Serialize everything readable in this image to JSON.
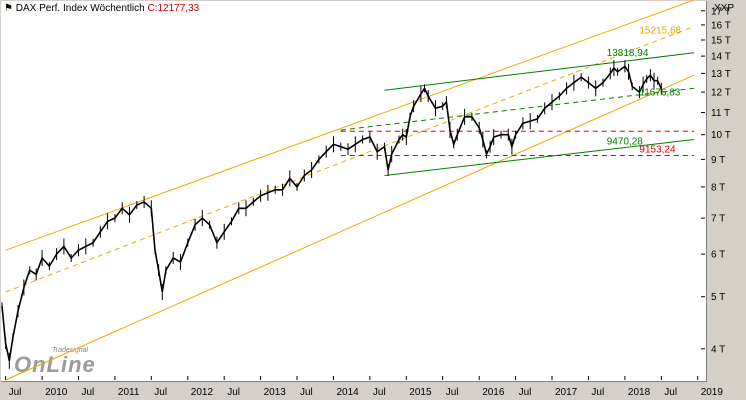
{
  "header": {
    "icon": "flag-icon",
    "instrument": "DAX Perf. Index",
    "period": "Wöchentlich",
    "close_label": "C:12177,33"
  },
  "axis_title": "XXP",
  "logo": {
    "small": "Tradesignal",
    "big": "OnLine"
  },
  "chart_data": {
    "type": "line",
    "scale": "log",
    "title": "DAX Perf. Index Wöchentlich",
    "ylim": [
      3.5,
      17.5
    ],
    "y_ticks": [
      {
        "value": 4,
        "label": "4 T"
      },
      {
        "value": 5,
        "label": "5 T"
      },
      {
        "value": 6,
        "label": "6 T"
      },
      {
        "value": 7,
        "label": "7 T"
      },
      {
        "value": 8,
        "label": "8 T"
      },
      {
        "value": 9,
        "label": "9 T"
      },
      {
        "value": 10,
        "label": "10 T"
      },
      {
        "value": 11,
        "label": "11 T"
      },
      {
        "value": 12,
        "label": "12 T"
      },
      {
        "value": 13,
        "label": "13 T"
      },
      {
        "value": 14,
        "label": "14 T"
      },
      {
        "value": 15,
        "label": "15 T"
      },
      {
        "value": 16,
        "label": "16 T"
      },
      {
        "value": 17,
        "label": "17 T"
      }
    ],
    "xlim": [
      2009.45,
      2019.1
    ],
    "x_ticks": [
      {
        "value": 2009.5,
        "label": "Jul"
      },
      {
        "value": 2010.0,
        "label": "2010"
      },
      {
        "value": 2010.5,
        "label": "Jul"
      },
      {
        "value": 2011.0,
        "label": "2011"
      },
      {
        "value": 2011.5,
        "label": "Jul"
      },
      {
        "value": 2012.0,
        "label": "2012"
      },
      {
        "value": 2012.5,
        "label": "Jul"
      },
      {
        "value": 2013.0,
        "label": "2013"
      },
      {
        "value": 2013.5,
        "label": "Jul"
      },
      {
        "value": 2014.0,
        "label": "2014"
      },
      {
        "value": 2014.5,
        "label": "Jul"
      },
      {
        "value": 2015.0,
        "label": "2015"
      },
      {
        "value": 2015.5,
        "label": "Jul"
      },
      {
        "value": 2016.0,
        "label": "2016"
      },
      {
        "value": 2016.5,
        "label": "Jul"
      },
      {
        "value": 2017.0,
        "label": "2017"
      },
      {
        "value": 2017.5,
        "label": "Jul"
      },
      {
        "value": 2018.0,
        "label": "2018"
      },
      {
        "value": 2018.5,
        "label": "Jul"
      },
      {
        "value": 2019.0,
        "label": "2019"
      }
    ],
    "series": [
      {
        "color": "#000000",
        "points": [
          [
            2009.45,
            4.8
          ],
          [
            2009.5,
            4.1
          ],
          [
            2009.55,
            3.8
          ],
          [
            2009.6,
            4.2
          ],
          [
            2009.67,
            4.7
          ],
          [
            2009.75,
            5.2
          ],
          [
            2009.83,
            5.6
          ],
          [
            2009.92,
            5.5
          ],
          [
            2010.0,
            5.9
          ],
          [
            2010.1,
            5.7
          ],
          [
            2010.2,
            6.0
          ],
          [
            2010.3,
            6.2
          ],
          [
            2010.4,
            5.9
          ],
          [
            2010.5,
            6.1
          ],
          [
            2010.6,
            6.2
          ],
          [
            2010.7,
            6.3
          ],
          [
            2010.8,
            6.6
          ],
          [
            2010.9,
            6.9
          ],
          [
            2011.0,
            7.0
          ],
          [
            2011.1,
            7.3
          ],
          [
            2011.2,
            7.1
          ],
          [
            2011.3,
            7.4
          ],
          [
            2011.4,
            7.5
          ],
          [
            2011.5,
            7.3
          ],
          [
            2011.55,
            6.1
          ],
          [
            2011.6,
            5.6
          ],
          [
            2011.65,
            5.1
          ],
          [
            2011.7,
            5.6
          ],
          [
            2011.8,
            5.9
          ],
          [
            2011.9,
            5.8
          ],
          [
            2012.0,
            6.3
          ],
          [
            2012.1,
            6.8
          ],
          [
            2012.2,
            7.0
          ],
          [
            2012.3,
            6.8
          ],
          [
            2012.4,
            6.3
          ],
          [
            2012.5,
            6.6
          ],
          [
            2012.6,
            6.9
          ],
          [
            2012.7,
            7.3
          ],
          [
            2012.8,
            7.3
          ],
          [
            2012.9,
            7.5
          ],
          [
            2013.0,
            7.7
          ],
          [
            2013.1,
            7.8
          ],
          [
            2013.2,
            7.9
          ],
          [
            2013.3,
            7.9
          ],
          [
            2013.4,
            8.3
          ],
          [
            2013.5,
            8.0
          ],
          [
            2013.6,
            8.4
          ],
          [
            2013.7,
            8.6
          ],
          [
            2013.8,
            9.0
          ],
          [
            2013.9,
            9.3
          ],
          [
            2014.0,
            9.6
          ],
          [
            2014.1,
            9.5
          ],
          [
            2014.2,
            9.4
          ],
          [
            2014.3,
            9.6
          ],
          [
            2014.4,
            9.8
          ],
          [
            2014.5,
            9.9
          ],
          [
            2014.6,
            9.3
          ],
          [
            2014.7,
            9.5
          ],
          [
            2014.75,
            8.6
          ],
          [
            2014.8,
            9.2
          ],
          [
            2014.9,
            9.8
          ],
          [
            2014.95,
            10.0
          ],
          [
            2015.0,
            9.9
          ],
          [
            2015.05,
            10.8
          ],
          [
            2015.1,
            11.3
          ],
          [
            2015.2,
            11.9
          ],
          [
            2015.25,
            12.2
          ],
          [
            2015.3,
            11.8
          ],
          [
            2015.4,
            11.2
          ],
          [
            2015.5,
            11.3
          ],
          [
            2015.55,
            11.5
          ],
          [
            2015.6,
            10.2
          ],
          [
            2015.65,
            9.6
          ],
          [
            2015.7,
            10.0
          ],
          [
            2015.8,
            10.8
          ],
          [
            2015.9,
            10.8
          ],
          [
            2016.0,
            10.3
          ],
          [
            2016.05,
            9.8
          ],
          [
            2016.1,
            9.2
          ],
          [
            2016.15,
            9.5
          ],
          [
            2016.2,
            9.9
          ],
          [
            2016.3,
            10.0
          ],
          [
            2016.4,
            10.0
          ],
          [
            2016.45,
            9.5
          ],
          [
            2016.5,
            10.0
          ],
          [
            2016.6,
            10.5
          ],
          [
            2016.7,
            10.6
          ],
          [
            2016.8,
            10.7
          ],
          [
            2016.9,
            11.2
          ],
          [
            2017.0,
            11.5
          ],
          [
            2017.1,
            11.8
          ],
          [
            2017.2,
            12.2
          ],
          [
            2017.3,
            12.5
          ],
          [
            2017.4,
            12.8
          ],
          [
            2017.5,
            12.5
          ],
          [
            2017.6,
            12.2
          ],
          [
            2017.7,
            12.5
          ],
          [
            2017.8,
            13.0
          ],
          [
            2017.85,
            13.3
          ],
          [
            2017.9,
            13.1
          ],
          [
            2018.0,
            13.4
          ],
          [
            2018.05,
            13.1
          ],
          [
            2018.1,
            12.3
          ],
          [
            2018.2,
            12.0
          ],
          [
            2018.25,
            12.4
          ],
          [
            2018.3,
            12.7
          ],
          [
            2018.35,
            12.9
          ],
          [
            2018.4,
            12.6
          ],
          [
            2018.45,
            12.6
          ],
          [
            2018.5,
            12.18
          ]
        ]
      }
    ],
    "trend_lines": [
      {
        "name": "upper-channel",
        "color": "#f0a800",
        "dash": "solid",
        "points": [
          [
            2009.5,
            6.1
          ],
          [
            2018.95,
            17.8
          ]
        ]
      },
      {
        "name": "mid-channel",
        "color": "#f0a800",
        "dash": "dashed",
        "points": [
          [
            2009.5,
            5.1
          ],
          [
            2018.95,
            15.9
          ]
        ]
      },
      {
        "name": "lower-channel",
        "color": "#f0a800",
        "dash": "solid",
        "points": [
          [
            2009.5,
            3.5
          ],
          [
            2018.95,
            12.9
          ]
        ]
      },
      {
        "name": "green-upper",
        "color": "#008000",
        "dash": "solid",
        "points": [
          [
            2014.7,
            12.1
          ],
          [
            2018.95,
            14.2
          ]
        ]
      },
      {
        "name": "green-mid",
        "color": "#008000",
        "dash": "dashed",
        "points": [
          [
            2014.1,
            10.2
          ],
          [
            2018.95,
            12.2
          ]
        ]
      },
      {
        "name": "green-lower",
        "color": "#008000",
        "dash": "solid",
        "points": [
          [
            2014.7,
            8.4
          ],
          [
            2018.95,
            9.8
          ]
        ]
      },
      {
        "name": "red-upper",
        "color": "#e00000",
        "dash": "dashed",
        "points": [
          [
            2014.1,
            10.15
          ],
          [
            2018.95,
            10.15
          ]
        ]
      },
      {
        "name": "red-lower",
        "color": "#e00000",
        "dash": "dashed",
        "points": [
          [
            2014.1,
            9.15
          ],
          [
            2018.95,
            9.15
          ]
        ]
      }
    ],
    "annotations": [
      {
        "text": "15215,68",
        "x": 2018.2,
        "y": 15.22,
        "color": "#f0a800"
      },
      {
        "text": "13818,94",
        "x": 2017.75,
        "y": 13.82,
        "color": "#008000"
      },
      {
        "text": "11676,83",
        "x": 2018.2,
        "y": 11.68,
        "color": "#008000"
      },
      {
        "text": "9470,28",
        "x": 2017.75,
        "y": 9.47,
        "color": "#008000"
      },
      {
        "text": "9153,24",
        "x": 2018.2,
        "y": 9.15,
        "color": "#e00000"
      }
    ]
  }
}
